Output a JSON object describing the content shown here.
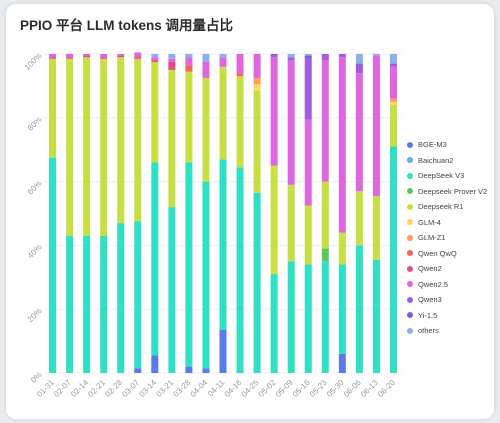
{
  "chart_data": {
    "type": "bar",
    "stacked": true,
    "orientation": "vertical",
    "title": "PPIO 平台 LLM tokens 调用量占比",
    "xlabel": "",
    "ylabel": "",
    "ylim": [
      0,
      100
    ],
    "yticks": [
      "0%",
      "20%",
      "40%",
      "60%",
      "80%",
      "100%"
    ],
    "legend_position": "right",
    "grid": true,
    "categories": [
      "01-31",
      "02-07",
      "02-14",
      "02-21",
      "02-28",
      "03-07",
      "03-14",
      "03-21",
      "03-28",
      "04-04",
      "04-11",
      "04-18",
      "04-25",
      "05-02",
      "05-09",
      "05-16",
      "05-23",
      "05-30",
      "06-06",
      "06-13",
      "06-20"
    ],
    "series": [
      {
        "name": "BGE-M3",
        "color": "#5b7bea",
        "values": [
          0,
          0,
          0,
          0,
          0,
          1.5,
          5.5,
          0,
          2,
          1.5,
          13.5,
          0,
          0,
          0,
          0,
          0,
          0,
          6,
          0,
          0,
          0
        ]
      },
      {
        "name": "Baichuan2",
        "color": "#6aa6e8",
        "values": [
          0,
          0,
          0,
          0,
          0,
          0,
          0,
          0,
          0,
          0,
          0,
          0,
          0,
          0,
          0,
          0,
          0,
          0,
          0,
          0,
          0
        ]
      },
      {
        "name": "DeepSeek V3",
        "color": "#2ee0c4",
        "values": [
          67.5,
          43,
          43,
          43,
          47,
          46,
          60.5,
          52,
          64,
          58.5,
          53.5,
          64.5,
          56.5,
          31,
          35,
          34,
          35,
          28,
          40,
          35.5,
          71
        ]
      },
      {
        "name": "Deepseek Prover V2",
        "color": "#5bc85b",
        "values": [
          0,
          0,
          0,
          0,
          0,
          0,
          0,
          0,
          0,
          0,
          0,
          0,
          0,
          0,
          0,
          0,
          4,
          0,
          0,
          0,
          0
        ]
      },
      {
        "name": "Deepseek R1",
        "color": "#c8de45",
        "values": [
          31,
          55.5,
          56,
          55.5,
          52,
          51,
          31.5,
          43,
          28.5,
          32.5,
          29,
          28.5,
          32,
          34,
          24,
          18.5,
          21,
          10,
          17,
          20,
          13
        ]
      },
      {
        "name": "GLM-4",
        "color": "#ffd75c",
        "values": [
          0,
          0,
          0,
          0,
          0,
          0,
          0,
          0,
          0,
          0,
          0,
          0,
          2,
          0,
          0,
          0,
          0,
          0,
          0,
          0,
          1
        ]
      },
      {
        "name": "GLM-Z1",
        "color": "#ff9e5c",
        "values": [
          0,
          0,
          0,
          0,
          0,
          0,
          0,
          0,
          0,
          0,
          0,
          0,
          2,
          0,
          0,
          0,
          0,
          0,
          0,
          0,
          1
        ]
      },
      {
        "name": "Qwen QwQ",
        "color": "#f26363",
        "values": [
          0,
          0,
          0,
          0,
          0,
          0,
          0,
          0,
          2,
          0,
          0,
          1,
          0,
          0,
          0,
          0,
          0,
          0,
          0,
          0,
          0
        ]
      },
      {
        "name": "Qwen2",
        "color": "#e64c84",
        "values": [
          0.5,
          0.5,
          0.5,
          0.5,
          0.5,
          0.5,
          0.5,
          2.5,
          0,
          0,
          0,
          0,
          0,
          0,
          0,
          0,
          0,
          0,
          0,
          0,
          0
        ]
      },
      {
        "name": "Qwen2.5",
        "color": "#e066e0",
        "values": [
          1,
          1,
          0.5,
          1,
          0.5,
          1.5,
          1,
          1,
          2.5,
          5,
          3,
          6,
          7.5,
          34,
          39,
          27,
          38,
          55,
          37,
          44,
          10
        ]
      },
      {
        "name": "Qwen3",
        "color": "#a05de0",
        "values": [
          0,
          0,
          0,
          0,
          0,
          0,
          0,
          0,
          0,
          0,
          0,
          0,
          0,
          1,
          1,
          19,
          2,
          1,
          3,
          0,
          1
        ]
      },
      {
        "name": "Yi-1.5",
        "color": "#7a5be8",
        "values": [
          0,
          0,
          0,
          0,
          0,
          0,
          0,
          0,
          0,
          0,
          0,
          0,
          0,
          0,
          0,
          1,
          0,
          0,
          0,
          0,
          0
        ]
      },
      {
        "name": "others",
        "color": "#8bb0ec",
        "values": [
          0,
          0,
          0,
          0,
          0,
          0,
          1,
          1.5,
          1,
          2.5,
          1,
          0,
          0,
          0,
          1,
          0.5,
          0,
          0,
          3,
          0.5,
          3
        ]
      }
    ]
  }
}
